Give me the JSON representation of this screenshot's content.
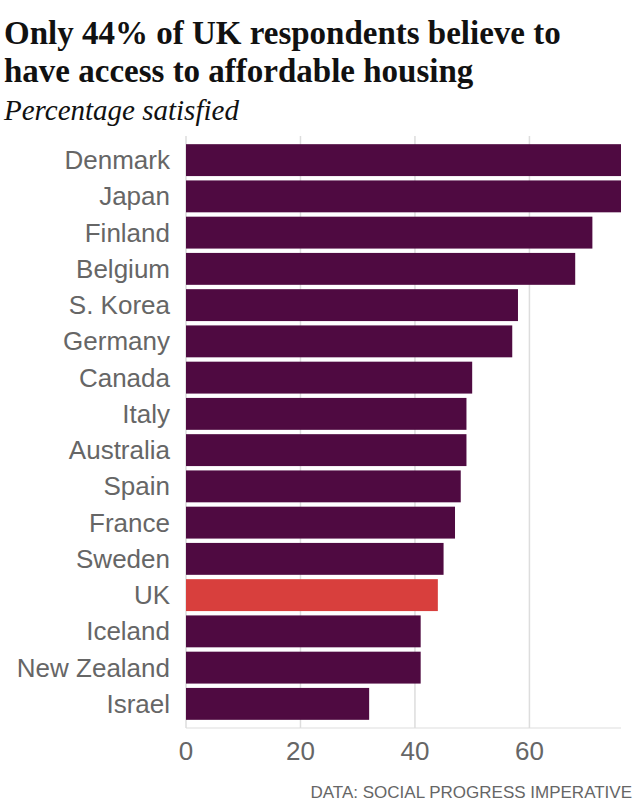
{
  "chart_data": {
    "type": "bar",
    "orientation": "horizontal",
    "title": "Only 44% of UK respondents believe to have access to affordable housing",
    "subtitle": "Percentage satisfied",
    "source": "DATA: SOCIAL PROGRESS IMPERATIVE",
    "categories": [
      "Denmark",
      "Japan",
      "Finland",
      "Belgium",
      "S. Korea",
      "Germany",
      "Canada",
      "Italy",
      "Australia",
      "Spain",
      "France",
      "Sweden",
      "UK",
      "Iceland",
      "New Zealand",
      "Israel"
    ],
    "values": [
      76,
      76,
      71,
      68,
      58,
      57,
      50,
      49,
      49,
      48,
      47,
      45,
      44,
      41,
      41,
      32
    ],
    "colors": [
      "#4f0a41",
      "#4f0a41",
      "#4f0a41",
      "#4f0a41",
      "#4f0a41",
      "#4f0a41",
      "#4f0a41",
      "#4f0a41",
      "#4f0a41",
      "#4f0a41",
      "#4f0a41",
      "#4f0a41",
      "#d83f3d",
      "#4f0a41",
      "#4f0a41",
      "#4f0a41"
    ],
    "xlim": [
      0,
      76
    ],
    "xticks": [
      0,
      20,
      40,
      60
    ],
    "grid": true
  }
}
